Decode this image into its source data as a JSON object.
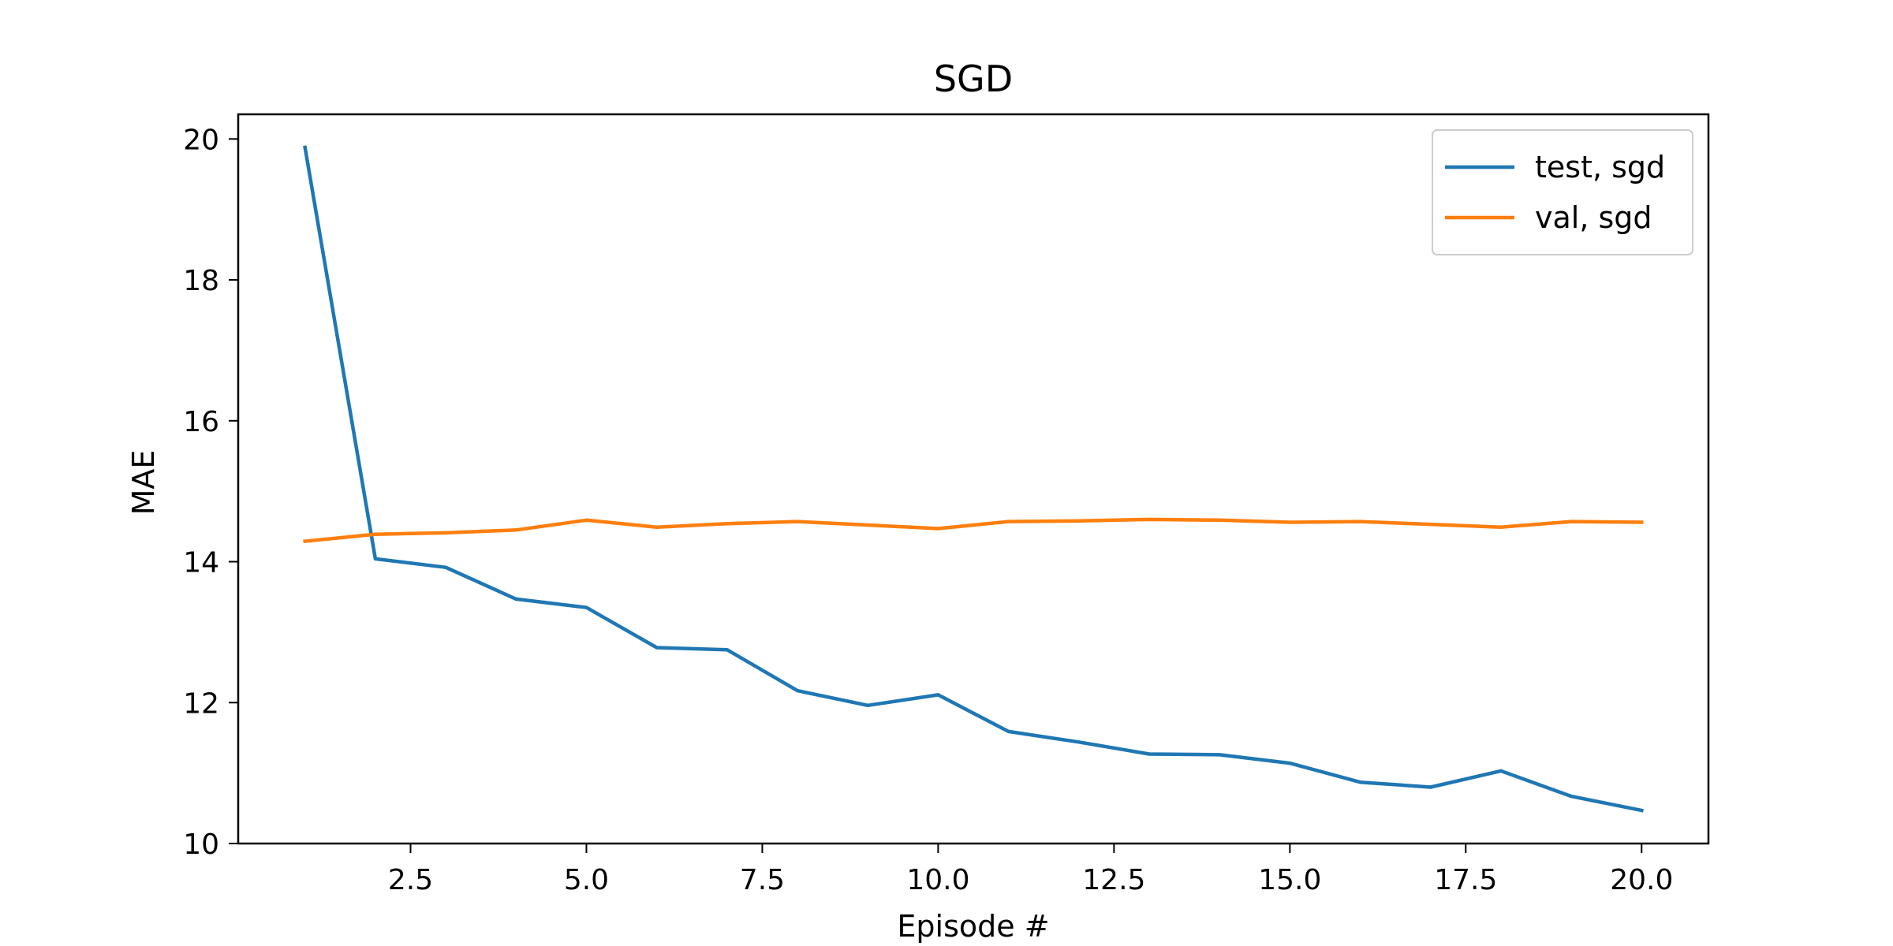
{
  "chart_data": {
    "type": "line",
    "title": "SGD",
    "xlabel": "Episode #",
    "ylabel": "MAE",
    "xlim": [
      0.05,
      20.95
    ],
    "ylim": [
      10,
      20.35
    ],
    "xticks": [
      2.5,
      5.0,
      7.5,
      10.0,
      12.5,
      15.0,
      17.5,
      20.0
    ],
    "xtick_labels": [
      "2.5",
      "5.0",
      "7.5",
      "10.0",
      "12.5",
      "15.0",
      "17.5",
      "20.0"
    ],
    "yticks": [
      10,
      12,
      14,
      16,
      18,
      20
    ],
    "ytick_labels": [
      "10",
      "12",
      "14",
      "16",
      "18",
      "20"
    ],
    "grid": false,
    "legend_position": "top-right",
    "x": [
      1,
      2,
      3,
      4,
      5,
      6,
      7,
      8,
      9,
      10,
      11,
      12,
      13,
      14,
      15,
      16,
      17,
      18,
      19,
      20
    ],
    "series": [
      {
        "name": "test, sgd",
        "color": "#1f77b4",
        "values": [
          19.88,
          14.04,
          13.92,
          13.47,
          13.35,
          12.78,
          12.75,
          12.17,
          11.96,
          12.11,
          11.59,
          11.44,
          11.27,
          11.26,
          11.14,
          10.87,
          10.8,
          11.03,
          10.67,
          10.47
        ]
      },
      {
        "name": "val, sgd",
        "color": "#ff7f0e",
        "values": [
          14.29,
          14.39,
          14.41,
          14.45,
          14.59,
          14.49,
          14.54,
          14.57,
          14.52,
          14.47,
          14.57,
          14.58,
          14.6,
          14.59,
          14.56,
          14.57,
          14.53,
          14.49,
          14.57,
          14.56
        ]
      }
    ]
  }
}
